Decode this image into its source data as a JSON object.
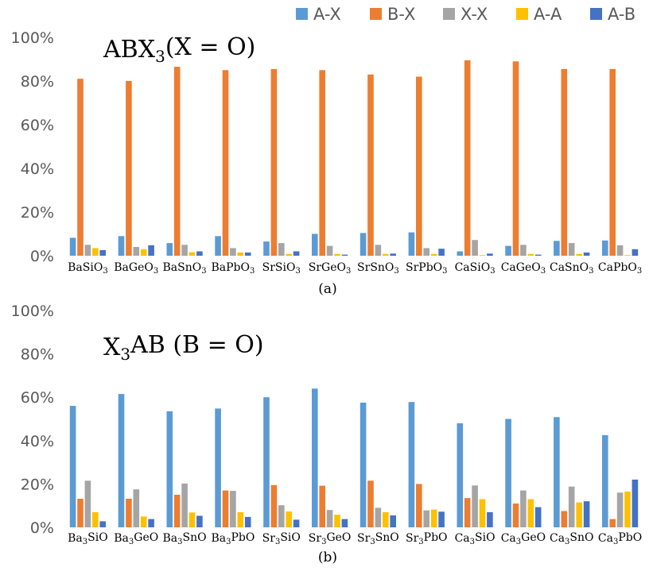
{
  "legend": [
    {
      "name": "A-X",
      "color": "#5b9bd5"
    },
    {
      "name": "B-X",
      "color": "#ed7d31"
    },
    {
      "name": "X-X",
      "color": "#a5a5a5"
    },
    {
      "name": "A-A",
      "color": "#ffc000"
    },
    {
      "name": "A-B",
      "color": "#4472c4"
    }
  ],
  "chart_data": [
    {
      "type": "bar",
      "title": "ABX3(X = O)",
      "title_parts": {
        "pre": "ABX",
        "sub": "3",
        "post": "(X = O)"
      },
      "caption": "(a)",
      "ylim": [
        0,
        100
      ],
      "yticks": [
        "0%",
        "20%",
        "40%",
        "60%",
        "80%",
        "100%"
      ],
      "categories": [
        "BaSiO3",
        "BaGeO3",
        "BaSnO3",
        "BaPbO3",
        "SrSiO3",
        "SrGeO3",
        "SrSnO3",
        "SrPbO3",
        "CaSiO3",
        "CaGeO3",
        "CaSnO3",
        "CaPbO3"
      ],
      "category_parts": [
        {
          "pre": "BaSiO",
          "sub": "3",
          "post": ""
        },
        {
          "pre": "BaGeO",
          "sub": "3",
          "post": ""
        },
        {
          "pre": "BaSnO",
          "sub": "3",
          "post": ""
        },
        {
          "pre": "BaPbO",
          "sub": "3",
          "post": ""
        },
        {
          "pre": "SrSiO",
          "sub": "3",
          "post": ""
        },
        {
          "pre": "SrGeO",
          "sub": "3",
          "post": ""
        },
        {
          "pre": "SrSnO",
          "sub": "3",
          "post": ""
        },
        {
          "pre": "SrPbO",
          "sub": "3",
          "post": ""
        },
        {
          "pre": "CaSiO",
          "sub": "3",
          "post": ""
        },
        {
          "pre": "CaGeO",
          "sub": "3",
          "post": ""
        },
        {
          "pre": "CaSnO",
          "sub": "3",
          "post": ""
        },
        {
          "pre": "CaPbO",
          "sub": "3",
          "post": ""
        }
      ],
      "series": [
        {
          "name": "A-X",
          "values": [
            8.2,
            9.0,
            5.8,
            9.0,
            6.5,
            10.0,
            10.4,
            10.7,
            2.0,
            4.5,
            6.8,
            7.0
          ]
        },
        {
          "name": "B-X",
          "values": [
            81.0,
            80.0,
            86.5,
            85.0,
            85.5,
            85.0,
            83.0,
            82.0,
            89.5,
            89.0,
            85.5,
            85.5
          ]
        },
        {
          "name": "X-X",
          "values": [
            5.0,
            4.0,
            5.0,
            3.5,
            5.8,
            4.5,
            5.0,
            3.5,
            7.2,
            5.0,
            5.8,
            4.8
          ]
        },
        {
          "name": "A-A",
          "values": [
            3.5,
            3.0,
            1.6,
            1.5,
            0.8,
            0.8,
            0.8,
            0.8,
            0.3,
            0.8,
            0.8,
            0.3
          ]
        },
        {
          "name": "A-B",
          "values": [
            2.6,
            4.8,
            2.0,
            1.5,
            2.0,
            0.5,
            1.0,
            3.2,
            1.0,
            0.5,
            1.5,
            3.0
          ]
        }
      ]
    },
    {
      "type": "bar",
      "title": "X3AB (B = O)",
      "title_parts": {
        "pre": "X",
        "sub": "3",
        "post": "AB (B = O)"
      },
      "caption": "(b)",
      "ylim": [
        0,
        100
      ],
      "yticks": [
        "0%",
        "20%",
        "40%",
        "60%",
        "80%",
        "100%"
      ],
      "categories": [
        "Ba3SiO",
        "Ba3GeO",
        "Ba3SnO",
        "Ba3PbO",
        "Sr3SiO",
        "Sr3GeO",
        "Sr3SnO",
        "Sr3PbO",
        "Ca3SiO",
        "Ca3GeO",
        "Ca3SnO",
        "Ca3PbO"
      ],
      "category_parts": [
        {
          "pre": "Ba",
          "sub": "3",
          "post": "SiO"
        },
        {
          "pre": "Ba",
          "sub": "3",
          "post": "GeO"
        },
        {
          "pre": "Ba",
          "sub": "3",
          "post": "SnO"
        },
        {
          "pre": "Ba",
          "sub": "3",
          "post": "PbO"
        },
        {
          "pre": "Sr",
          "sub": "3",
          "post": "SiO"
        },
        {
          "pre": "Sr",
          "sub": "3",
          "post": "GeO"
        },
        {
          "pre": "Sr",
          "sub": "3",
          "post": "SnO"
        },
        {
          "pre": "Sr",
          "sub": "3",
          "post": "PbO"
        },
        {
          "pre": "Ca",
          "sub": "3",
          "post": "SiO"
        },
        {
          "pre": "Ca",
          "sub": "3",
          "post": "GeO"
        },
        {
          "pre": "Ca",
          "sub": "3",
          "post": "SnO"
        },
        {
          "pre": "Ca",
          "sub": "3",
          "post": "PbO"
        }
      ],
      "series": [
        {
          "name": "A-X",
          "values": [
            56.0,
            61.5,
            53.5,
            54.8,
            60.0,
            64.0,
            57.5,
            57.8,
            48.0,
            50.0,
            50.8,
            42.5
          ]
        },
        {
          "name": "B-X",
          "values": [
            13.2,
            13.2,
            15.0,
            17.0,
            19.5,
            19.2,
            21.5,
            20.0,
            13.5,
            11.0,
            7.5,
            3.8
          ]
        },
        {
          "name": "X-X",
          "values": [
            21.5,
            17.5,
            20.2,
            16.8,
            10.2,
            8.0,
            9.0,
            7.8,
            19.3,
            17.0,
            18.8,
            16.0
          ]
        },
        {
          "name": "A-A",
          "values": [
            7.0,
            5.0,
            6.8,
            7.0,
            7.3,
            5.8,
            7.0,
            8.2,
            13.0,
            13.0,
            11.5,
            16.5
          ]
        },
        {
          "name": "A-B",
          "values": [
            2.8,
            3.8,
            5.3,
            4.8,
            3.5,
            3.8,
            5.5,
            7.2,
            7.0,
            9.3,
            12.0,
            22.0
          ]
        }
      ]
    }
  ]
}
